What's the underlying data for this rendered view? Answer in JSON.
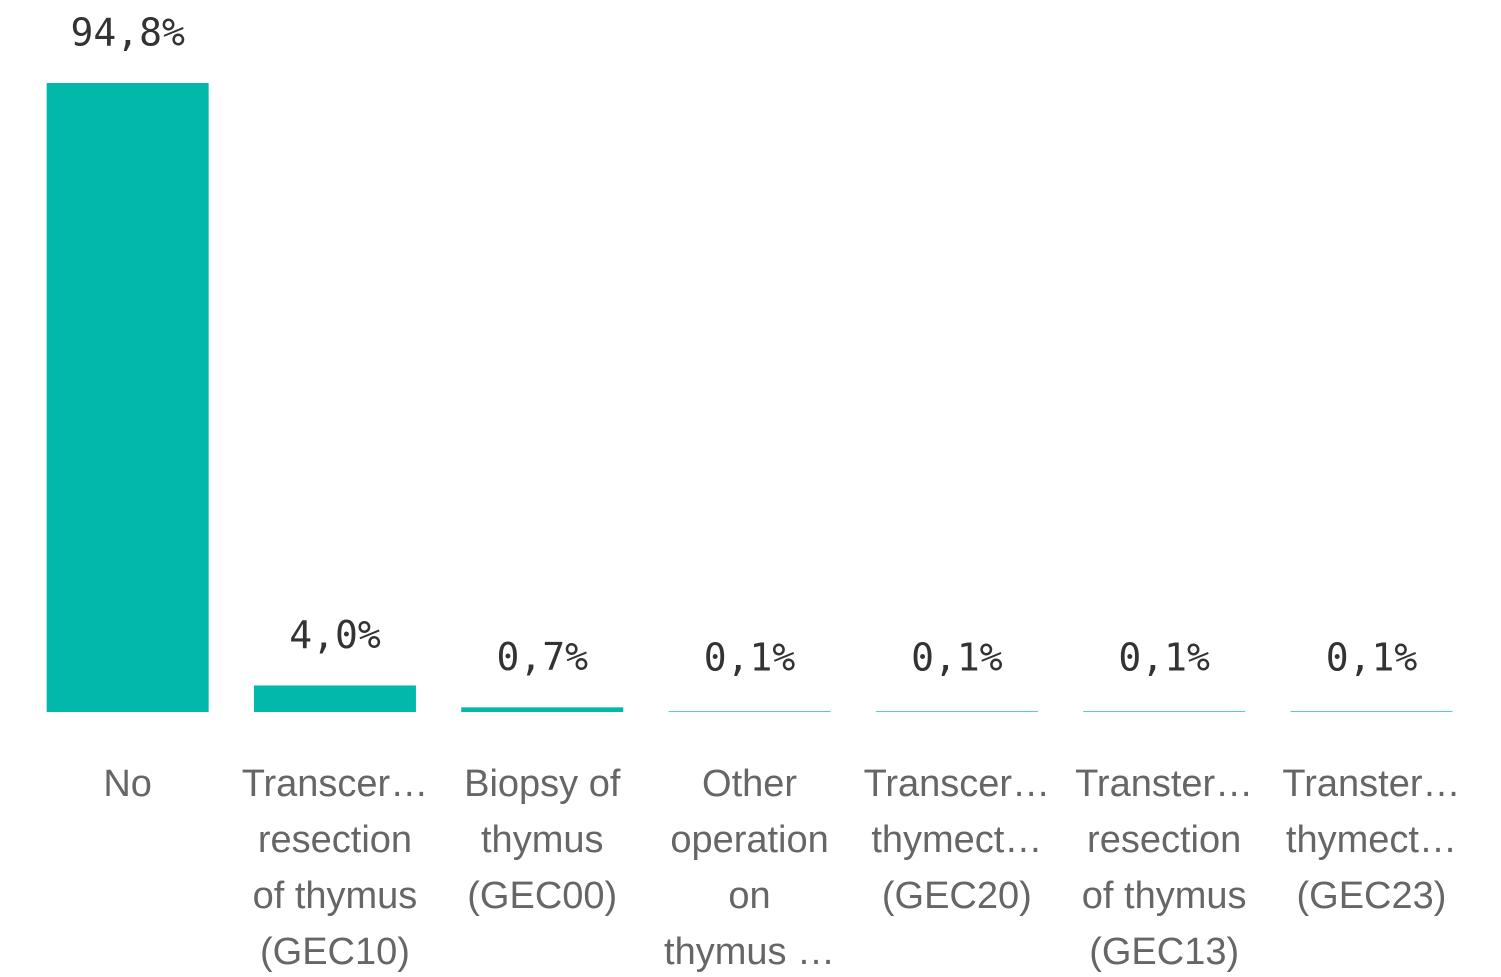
{
  "chart_data": {
    "type": "bar",
    "categories": [
      [
        "No"
      ],
      [
        "Transcer…",
        "resection",
        "of thymus",
        "(GEC10)"
      ],
      [
        "Biopsy of",
        "thymus",
        "(GEC00)"
      ],
      [
        "Other",
        "operation",
        "on",
        "thymus …"
      ],
      [
        "Transcer…",
        "thymect…",
        "(GEC20)"
      ],
      [
        "Transter…",
        "resection",
        "of thymus",
        "(GEC13)"
      ],
      [
        "Transter…",
        "thymect…",
        "(GEC23)"
      ]
    ],
    "values": [
      94.8,
      4.0,
      0.7,
      0.1,
      0.1,
      0.1,
      0.1
    ],
    "value_labels": [
      "94,8%",
      "4,0%",
      "0,7%",
      "0,1%",
      "0,1%",
      "0,1%",
      "0,1%"
    ],
    "color": "#01b8aa"
  }
}
